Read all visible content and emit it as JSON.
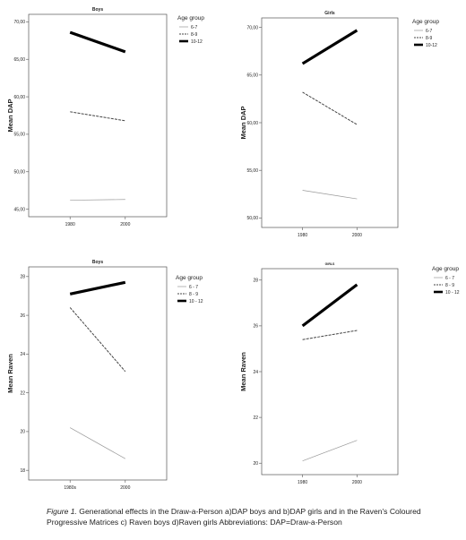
{
  "chart_data": [
    {
      "type": "line",
      "title": "Boys",
      "xlabel": "",
      "ylabel": "Mean DAP",
      "categories": [
        "1980",
        "2000"
      ],
      "yticks": [
        "45,00",
        "50,00",
        "55,00",
        "60,00",
        "65,00",
        "70,00"
      ],
      "ylim": [
        44.0,
        71.0
      ],
      "legend_title": "Age group",
      "legend_position": "top-right",
      "series": [
        {
          "name": "6-7",
          "values": [
            46.2,
            46.3
          ],
          "style": "thin-solid"
        },
        {
          "name": "8-9",
          "values": [
            58.0,
            56.8
          ],
          "style": "dashed"
        },
        {
          "name": "10-12",
          "values": [
            68.6,
            66.0
          ],
          "style": "thick-solid"
        }
      ]
    },
    {
      "type": "line",
      "title": "Girls",
      "xlabel": "",
      "ylabel": "Mean DAP",
      "categories": [
        "1980",
        "2000"
      ],
      "yticks": [
        "50,00",
        "55,00",
        "60,00",
        "65,00",
        "70,00"
      ],
      "ylim": [
        49.0,
        71.0
      ],
      "legend_title": "Age group",
      "legend_position": "top-right",
      "series": [
        {
          "name": "6-7",
          "values": [
            52.9,
            52.0
          ],
          "style": "thin-solid"
        },
        {
          "name": "8-9",
          "values": [
            63.2,
            59.8
          ],
          "style": "dashed"
        },
        {
          "name": "10-12",
          "values": [
            66.2,
            69.7
          ],
          "style": "thick-solid"
        }
      ]
    },
    {
      "type": "line",
      "title": "Boys",
      "xlabel": "",
      "ylabel": "Mean Raven",
      "categories": [
        "1980s",
        "2000"
      ],
      "yticks": [
        "18",
        "20",
        "22",
        "24",
        "26",
        "28"
      ],
      "ylim": [
        17.5,
        28.5
      ],
      "legend_title": "Age group",
      "legend_position": "top-right",
      "series": [
        {
          "name": "6 - 7",
          "values": [
            20.2,
            18.6
          ],
          "style": "thin-solid"
        },
        {
          "name": "8 - 9",
          "values": [
            26.4,
            23.1
          ],
          "style": "dashed"
        },
        {
          "name": "10 - 12",
          "values": [
            27.1,
            27.7
          ],
          "style": "thick-solid"
        }
      ]
    },
    {
      "type": "line",
      "title": "GIRLS",
      "xlabel": "",
      "ylabel": "Mean Raven",
      "categories": [
        "1980",
        "2000"
      ],
      "yticks": [
        "20",
        "22",
        "24",
        "26",
        "28"
      ],
      "ylim": [
        19.5,
        28.5
      ],
      "legend_title": "Age group",
      "legend_position": "top-right",
      "series": [
        {
          "name": "6 - 7",
          "values": [
            20.1,
            21.0
          ],
          "style": "thin-solid"
        },
        {
          "name": "8 - 9",
          "values": [
            25.4,
            25.8
          ],
          "style": "dashed"
        },
        {
          "name": "10 - 12",
          "values": [
            26.0,
            27.8
          ],
          "style": "thick-solid"
        }
      ]
    }
  ],
  "caption": {
    "figure_label": "Figure 1.",
    "text": " Generational effects in the Draw-a-Person a)DAP boys and b)DAP girls  and in the Raven's Coloured Progressive Matrices c) Raven boys d)Raven  girls     Abbreviations: DAP=Draw-a-Person"
  }
}
